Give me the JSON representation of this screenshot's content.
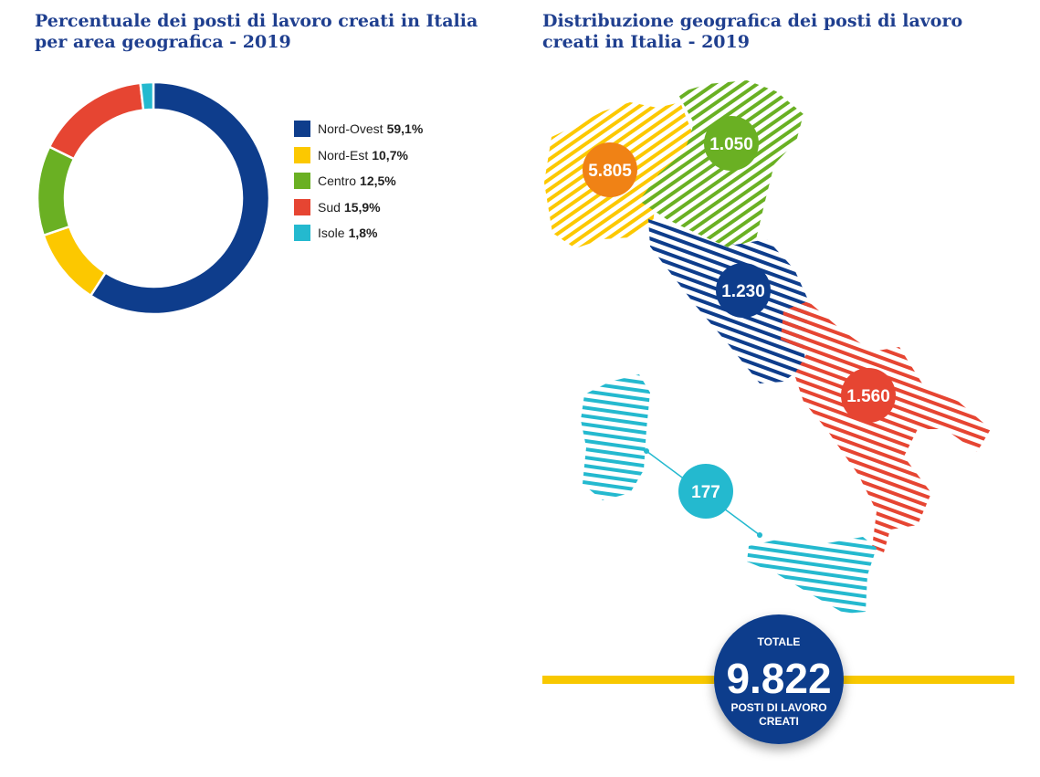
{
  "colors": {
    "title": "#1f3f8f",
    "nord_ovest": "#0e3d8c",
    "nord_est": "#fcc800",
    "centro": "#6ab023",
    "sud": "#e64532",
    "isole": "#24b9cf",
    "orange": "#f08215",
    "total_bar": "#f8c800"
  },
  "left_title": "Percentuale dei posti di lavoro creati in Italia per area geografica - 2019",
  "right_title": "Distribuzione geografica dei posti di lavoro creati in Italia - 2019",
  "chart_data": [
    {
      "type": "pie",
      "title": "Percentuale dei posti di lavoro creati in Italia per area geografica - 2019",
      "donut": true,
      "legend_position": "right",
      "series": [
        {
          "name": "Nord-Ovest",
          "value": 59.1,
          "label": "59,1%",
          "color": "#0e3d8c"
        },
        {
          "name": "Nord-Est",
          "value": 10.7,
          "label": "10,7%",
          "color": "#fcc800"
        },
        {
          "name": "Centro",
          "value": 12.5,
          "label": "12,5%",
          "color": "#6ab023"
        },
        {
          "name": "Sud",
          "value": 15.9,
          "label": "15,9%",
          "color": "#e64532"
        },
        {
          "name": "Isole",
          "value": 1.8,
          "label": "1,8%",
          "color": "#24b9cf"
        }
      ]
    },
    {
      "type": "map",
      "title": "Distribuzione geografica dei posti di lavoro creati in Italia - 2019",
      "regions": [
        {
          "value": 5805,
          "label": "5.805",
          "color": "#f08215"
        },
        {
          "value": 1050,
          "label": "1.050",
          "color": "#6ab023"
        },
        {
          "value": 1230,
          "label": "1.230",
          "color": "#0e3d8c"
        },
        {
          "value": 1560,
          "label": "1.560",
          "color": "#e64532"
        },
        {
          "value": 177,
          "label": "177",
          "color": "#24b9cf"
        }
      ],
      "total": {
        "value": 9822,
        "label": "9.822",
        "top_text": "TOTALE",
        "bottom_line1": "POSTI DI LAVORO",
        "bottom_line2": "CREATI"
      }
    }
  ]
}
